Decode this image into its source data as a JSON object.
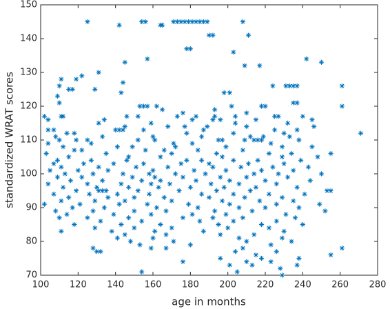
{
  "chart_data": {
    "type": "scatter",
    "xlabel": "age in months",
    "ylabel": "standardized WRAT scores",
    "xlim": [
      100,
      280
    ],
    "xticks": [
      100,
      120,
      140,
      160,
      180,
      200,
      220,
      240,
      260,
      280
    ],
    "ylim": [
      70,
      150
    ],
    "yticks": [
      70,
      80,
      90,
      100,
      110,
      120,
      130,
      140,
      150
    ],
    "marker": "asterisk",
    "box": true,
    "series": [
      {
        "color": "#0072bd",
        "x": [
          125,
          154,
          156,
          171,
          173,
          175,
          177,
          179,
          181,
          183,
          185,
          187,
          189,
          208,
          142,
          164,
          165,
          190,
          192,
          211,
          178,
          180,
          203,
          157,
          242,
          145,
          250,
          209,
          217,
          131,
          122,
          111,
          119,
          144,
          110,
          224,
          231,
          233,
          235,
          237,
          261,
          115,
          117,
          129,
          143,
          198,
          201,
          109,
          110,
          235,
          237,
          153,
          155,
          157,
          162,
          202,
          218,
          220,
          261,
          165,
          193,
          176,
          210,
          102,
          111,
          112,
          146,
          152,
          173,
          183,
          193,
          204,
          225,
          227,
          240,
          104,
          134,
          181,
          192,
          196,
          215,
          245,
          131,
          159,
          204,
          232,
          145,
          168,
          177,
          189,
          210,
          246,
          104,
          107,
          140,
          142,
          144,
          155,
          187,
          225,
          237,
          114,
          118,
          178,
          203,
          230,
          271,
          108,
          133,
          160,
          186,
          212,
          219,
          233,
          110,
          119,
          125,
          152,
          161,
          195,
          197,
          209,
          214,
          216,
          218,
          238,
          104,
          127,
          171,
          181,
          223,
          112,
          141,
          149,
          172,
          199,
          229,
          245,
          118,
          122,
          156,
          166,
          184,
          208,
          103,
          135,
          170,
          194,
          222,
          234,
          255,
          115,
          147,
          164,
          197,
          229,
          248,
          109,
          127,
          146,
          178,
          186,
          203,
          216,
          239,
          107,
          123,
          139,
          155,
          175,
          190,
          211,
          230,
          111,
          131,
          151,
          168,
          192,
          207,
          224,
          243,
          105,
          120,
          136,
          160,
          182,
          199,
          218,
          235,
          113,
          128,
          144,
          158,
          172,
          188,
          214,
          227,
          250,
          109,
          122,
          149,
          161,
          176,
          196,
          210,
          232,
          116,
          133,
          154,
          164,
          183,
          201,
          220,
          244,
          104,
          125,
          143,
          159,
          169,
          191,
          206,
          226,
          112,
          130,
          147,
          163,
          180,
          198,
          215,
          237,
          119,
          131,
          133,
          135,
          152,
          174,
          194,
          212,
          253,
          255,
          107,
          126,
          141,
          158,
          186,
          203,
          222,
          241,
          115,
          136,
          150,
          166,
          190,
          209,
          229,
          111,
          129,
          145,
          170,
          197,
          217,
          235,
          102,
          121,
          142,
          157,
          179,
          201,
          226,
          249,
          117,
          134,
          162,
          184,
          206,
          220,
          238,
          108,
          128,
          150,
          167,
          193,
          213,
          252,
          114,
          139,
          159,
          181,
          199,
          231,
          110,
          125,
          147,
          176,
          192,
          208,
          236,
          132,
          154,
          185,
          203,
          226,
          118,
          143,
          164,
          195,
          218,
          240,
          129,
          150,
          170,
          200,
          222,
          111,
          138,
          161,
          187,
          230,
          145,
          167,
          196,
          214,
          141,
          160,
          206,
          229,
          148,
          171,
          210,
          234,
          153,
          180,
          223,
          128,
          159,
          167,
          208,
          261,
          130,
          132,
          204,
          226,
          215,
          255,
          196,
          218,
          238,
          176,
          210,
          223,
          201,
          213,
          237,
          228,
          154,
          205,
          229
        ],
        "values": [
          145,
          145,
          145,
          145,
          145,
          145,
          145,
          145,
          145,
          145,
          145,
          145,
          145,
          145,
          144,
          144,
          144,
          141,
          141,
          141,
          137,
          137,
          136,
          134,
          134,
          133,
          133,
          132,
          132,
          130,
          129,
          128,
          128,
          127,
          126,
          126,
          126,
          126,
          126,
          126,
          126,
          125,
          125,
          125,
          124,
          124,
          124,
          123,
          121,
          121,
          121,
          120,
          120,
          120,
          120,
          120,
          120,
          120,
          120,
          119,
          119,
          118,
          118,
          117,
          117,
          117,
          117,
          117,
          117,
          117,
          117,
          117,
          117,
          117,
          117,
          116,
          116,
          116,
          116,
          116,
          116,
          116,
          115,
          115,
          115,
          115,
          114,
          114,
          114,
          114,
          114,
          114,
          113,
          113,
          113,
          113,
          113,
          113,
          113,
          113,
          113,
          112,
          112,
          112,
          112,
          112,
          112,
          111,
          111,
          111,
          111,
          111,
          111,
          111,
          110,
          110,
          110,
          110,
          110,
          110,
          110,
          110,
          110,
          110,
          110,
          110,
          109,
          109,
          109,
          109,
          109,
          108,
          108,
          108,
          108,
          108,
          108,
          108,
          107,
          107,
          107,
          107,
          107,
          107,
          106,
          106,
          106,
          106,
          106,
          106,
          106,
          105,
          105,
          105,
          105,
          105,
          105,
          104,
          104,
          104,
          104,
          104,
          104,
          104,
          104,
          103,
          103,
          103,
          103,
          103,
          103,
          103,
          103,
          102,
          102,
          102,
          102,
          102,
          102,
          102,
          102,
          101,
          101,
          101,
          101,
          101,
          101,
          101,
          101,
          100,
          100,
          100,
          100,
          100,
          100,
          100,
          100,
          100,
          99,
          99,
          99,
          99,
          99,
          99,
          99,
          99,
          98,
          98,
          98,
          98,
          98,
          98,
          98,
          98,
          97,
          97,
          97,
          97,
          97,
          97,
          97,
          97,
          96,
          96,
          96,
          96,
          96,
          96,
          96,
          96,
          95,
          95,
          95,
          95,
          95,
          95,
          95,
          95,
          95,
          95,
          94,
          94,
          94,
          94,
          94,
          94,
          94,
          94,
          93,
          93,
          93,
          93,
          93,
          93,
          93,
          92,
          92,
          92,
          92,
          92,
          92,
          92,
          91,
          91,
          91,
          91,
          91,
          91,
          91,
          91,
          90,
          90,
          90,
          90,
          90,
          90,
          90,
          89,
          89,
          89,
          89,
          89,
          89,
          89,
          88,
          88,
          88,
          88,
          88,
          88,
          87,
          87,
          87,
          87,
          87,
          87,
          87,
          86,
          86,
          86,
          86,
          86,
          85,
          85,
          85,
          85,
          85,
          85,
          84,
          84,
          84,
          84,
          84,
          83,
          83,
          83,
          83,
          83,
          82,
          82,
          82,
          82,
          81,
          81,
          81,
          81,
          80,
          80,
          80,
          80,
          79,
          79,
          79,
          78,
          78,
          78,
          78,
          78,
          77,
          77,
          77,
          77,
          76,
          76,
          75,
          75,
          75,
          74,
          74,
          74,
          73,
          73,
          73,
          72,
          71,
          71,
          70
        ]
      }
    ]
  }
}
